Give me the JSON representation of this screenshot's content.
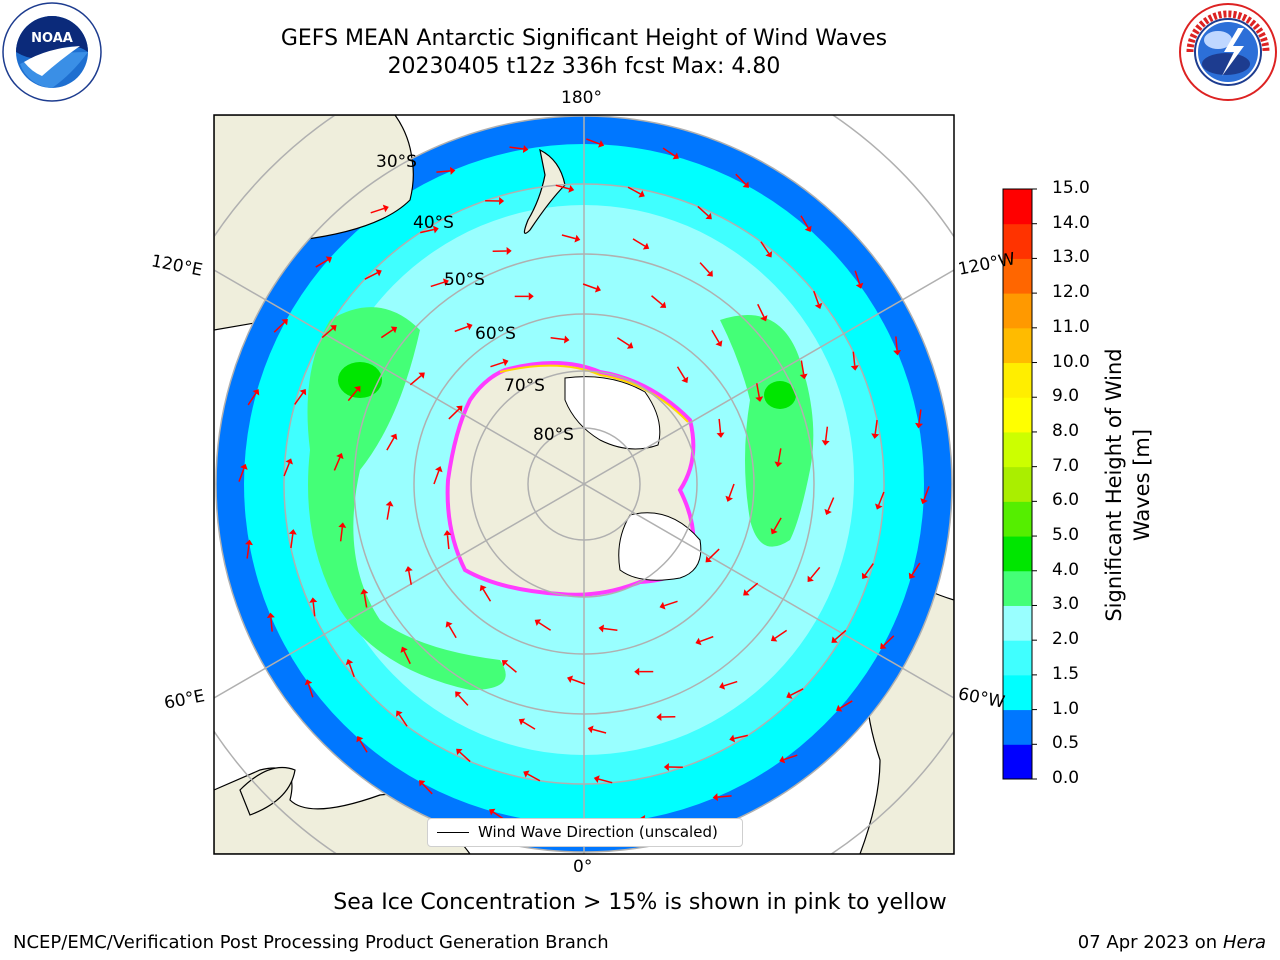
{
  "header": {
    "title_line1": "GEFS MEAN Antarctic Significant Height of Wind Waves",
    "title_line2": "20230405 t12z 336h fcst   Max: 4.80"
  },
  "logos": {
    "left": "noaa-logo",
    "left_text": "NOAA",
    "right": "nws-logo"
  },
  "map": {
    "projection": "south-polar-stereographic",
    "lon_labels": {
      "top": "180°",
      "bottom": "0°",
      "upper_left": "120°E",
      "lower_left": "60°E",
      "upper_right": "120°W",
      "lower_right": "60°W"
    },
    "lat_labels": [
      "30°S",
      "40°S",
      "50°S",
      "60°S",
      "70°S",
      "80°S"
    ],
    "colors": {
      "land": "#efeedc",
      "ice_edge_pink": "#ff3cff",
      "ice_edge_yellow": "#ffd700",
      "arrow": "#ff0000",
      "grid": "#b0b0b0"
    }
  },
  "colorbar": {
    "title": "Significant Height of Wind Waves [m]",
    "ticks": [
      "15.0",
      "14.0",
      "13.0",
      "12.0",
      "11.0",
      "10.0",
      "9.0",
      "8.0",
      "7.0",
      "6.0",
      "5.0",
      "4.0",
      "3.0",
      "2.0",
      "1.5",
      "1.0",
      "0.5",
      "0.0"
    ],
    "colors": [
      "#0000ff",
      "#0077ff",
      "#00ffff",
      "#40ffff",
      "#99ffff",
      "#44ff77",
      "#00e600",
      "#55ee00",
      "#aaee00",
      "#ccff00",
      "#ffff00",
      "#ffee00",
      "#ffbb00",
      "#ff9900",
      "#ff6600",
      "#ff3300",
      "#ff0000"
    ]
  },
  "legend": {
    "label": "Wind Wave Direction (unscaled)"
  },
  "footer": {
    "caption": "Sea Ice Concentration > 15% is shown in pink to yellow",
    "left": "NCEP/EMC/Verification Post Processing Product Generation Branch",
    "date": "07 Apr 2023 on ",
    "system": "Hera"
  }
}
